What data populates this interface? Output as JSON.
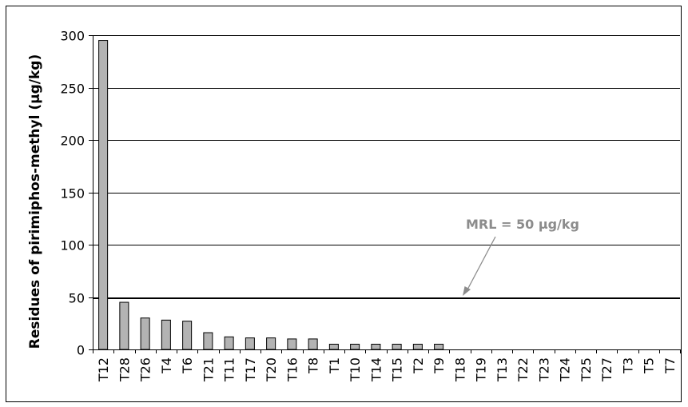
{
  "chart_data": {
    "type": "bar",
    "ylabel": "Residues of pirimiphos-methyl (µg/kg)",
    "categories": [
      "T12",
      "T28",
      "T26",
      "T4",
      "T6",
      "T21",
      "T11",
      "T17",
      "T20",
      "T16",
      "T8",
      "T1",
      "T10",
      "T14",
      "T15",
      "T2",
      "T9",
      "T18",
      "T19",
      "T13",
      "T22",
      "T23",
      "T24",
      "T25",
      "T27",
      "T3",
      "T5",
      "T7"
    ],
    "values": [
      295,
      45,
      30,
      28,
      27,
      16,
      12,
      11,
      11,
      10,
      10,
      5,
      5,
      5,
      5,
      5,
      5,
      0,
      0,
      0,
      0,
      0,
      0,
      0,
      0,
      0,
      0,
      0
    ],
    "ylim": [
      0,
      300
    ],
    "yticks": [
      0,
      50,
      100,
      150,
      200,
      250,
      300
    ],
    "grid": true,
    "reference_line": {
      "value": 50,
      "label": "MRL = 50 µg/kg"
    },
    "colors": {
      "bar": "#b3b3b3",
      "bar_stroke": "#000000",
      "annotation": "#8c8c8c"
    }
  }
}
